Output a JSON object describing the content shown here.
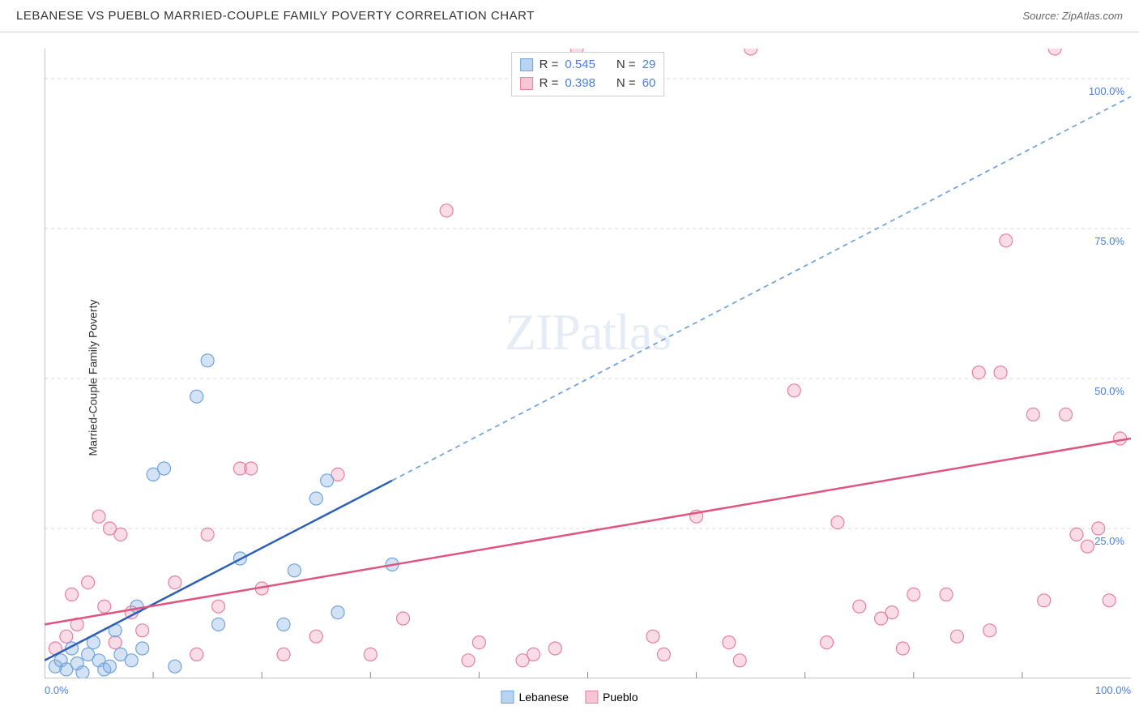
{
  "header": {
    "title": "LEBANESE VS PUEBLO MARRIED-COUPLE FAMILY POVERTY CORRELATION CHART",
    "source": "Source: ZipAtlas.com"
  },
  "watermark": {
    "zip": "ZIP",
    "atlas": "atlas"
  },
  "yAxis": {
    "label": "Married-Couple Family Poverty",
    "ticks": [
      {
        "value": 25,
        "label": "25.0%"
      },
      {
        "value": 50,
        "label": "50.0%"
      },
      {
        "value": 75,
        "label": "75.0%"
      },
      {
        "value": 100,
        "label": "100.0%"
      }
    ]
  },
  "xAxis": {
    "ticks": [
      {
        "value": 0,
        "label": "0.0%"
      },
      {
        "value": 100,
        "label": "100.0%"
      }
    ],
    "minorTicks": [
      10,
      20,
      30,
      40,
      50,
      60,
      70,
      80,
      90
    ]
  },
  "legendStats": [
    {
      "color_fill": "#b8d4f0",
      "color_stroke": "#6fa3e0",
      "r_label": "R =",
      "r_value": "0.545",
      "n_label": "N =",
      "n_value": "29"
    },
    {
      "color_fill": "#f7c6d4",
      "color_stroke": "#e87fa3",
      "r_label": "R =",
      "r_value": "0.398",
      "n_label": "N =",
      "n_value": "60"
    }
  ],
  "bottomLegend": [
    {
      "color_fill": "#b8d4f0",
      "color_stroke": "#6fa3e0",
      "label": "Lebanese"
    },
    {
      "color_fill": "#f7c6d4",
      "color_stroke": "#e87fa3",
      "label": "Pueblo"
    }
  ],
  "chart": {
    "type": "scatter",
    "xlim": [
      0,
      100
    ],
    "ylim": [
      0,
      105
    ],
    "background_color": "#ffffff",
    "grid_color": "#d8d8d8",
    "marker_radius": 8,
    "series": [
      {
        "name": "Lebanese",
        "fill": "rgba(130,175,225,0.35)",
        "stroke": "#6fa3e0",
        "points": [
          [
            1,
            2
          ],
          [
            1.5,
            3
          ],
          [
            2,
            1.5
          ],
          [
            2.5,
            5
          ],
          [
            3,
            2.5
          ],
          [
            3.5,
            1
          ],
          [
            4,
            4
          ],
          [
            4.5,
            6
          ],
          [
            5,
            3
          ],
          [
            5.5,
            1.5
          ],
          [
            6,
            2
          ],
          [
            6.5,
            8
          ],
          [
            7,
            4
          ],
          [
            8,
            3
          ],
          [
            8.5,
            12
          ],
          [
            9,
            5
          ],
          [
            10,
            34
          ],
          [
            11,
            35
          ],
          [
            12,
            2
          ],
          [
            14,
            47
          ],
          [
            15,
            53
          ],
          [
            16,
            9
          ],
          [
            18,
            20
          ],
          [
            22,
            9
          ],
          [
            23,
            18
          ],
          [
            25,
            30
          ],
          [
            26,
            33
          ],
          [
            27,
            11
          ],
          [
            32,
            19
          ]
        ],
        "trend": {
          "x1": 0,
          "y1": 3,
          "x2": 32,
          "y2": 33,
          "ext_x2": 100,
          "ext_y2": 97,
          "solid_color": "#2d5fb8",
          "dash_color": "#6fa3e0",
          "width": 2.5
        }
      },
      {
        "name": "Pueblo",
        "fill": "rgba(235,140,170,0.30)",
        "stroke": "#e87fa3",
        "points": [
          [
            1,
            5
          ],
          [
            2,
            7
          ],
          [
            2.5,
            14
          ],
          [
            3,
            9
          ],
          [
            4,
            16
          ],
          [
            5,
            27
          ],
          [
            5.5,
            12
          ],
          [
            6,
            25
          ],
          [
            6.5,
            6
          ],
          [
            7,
            24
          ],
          [
            8,
            11
          ],
          [
            9,
            8
          ],
          [
            12,
            16
          ],
          [
            14,
            4
          ],
          [
            15,
            24
          ],
          [
            16,
            12
          ],
          [
            18,
            35
          ],
          [
            19,
            35
          ],
          [
            20,
            15
          ],
          [
            22,
            4
          ],
          [
            25,
            7
          ],
          [
            27,
            34
          ],
          [
            30,
            4
          ],
          [
            33,
            10
          ],
          [
            37,
            78
          ],
          [
            39,
            3
          ],
          [
            40,
            6
          ],
          [
            44,
            3
          ],
          [
            45,
            4
          ],
          [
            47,
            5
          ],
          [
            49,
            105
          ],
          [
            56,
            7
          ],
          [
            57,
            4
          ],
          [
            60,
            27
          ],
          [
            63,
            6
          ],
          [
            64,
            3
          ],
          [
            65,
            105
          ],
          [
            69,
            48
          ],
          [
            72,
            6
          ],
          [
            73,
            26
          ],
          [
            75,
            12
          ],
          [
            77,
            10
          ],
          [
            78,
            11
          ],
          [
            79,
            5
          ],
          [
            80,
            14
          ],
          [
            83,
            14
          ],
          [
            84,
            7
          ],
          [
            86,
            51
          ],
          [
            87,
            8
          ],
          [
            88,
            51
          ],
          [
            88.5,
            73
          ],
          [
            91,
            44
          ],
          [
            92,
            13
          ],
          [
            93,
            105
          ],
          [
            94,
            44
          ],
          [
            95,
            24
          ],
          [
            96,
            22
          ],
          [
            97,
            25
          ],
          [
            98,
            13
          ],
          [
            99,
            40
          ]
        ],
        "trend": {
          "x1": 0,
          "y1": 9,
          "x2": 100,
          "y2": 40,
          "solid_color": "#e05580",
          "width": 2.5
        }
      }
    ]
  }
}
